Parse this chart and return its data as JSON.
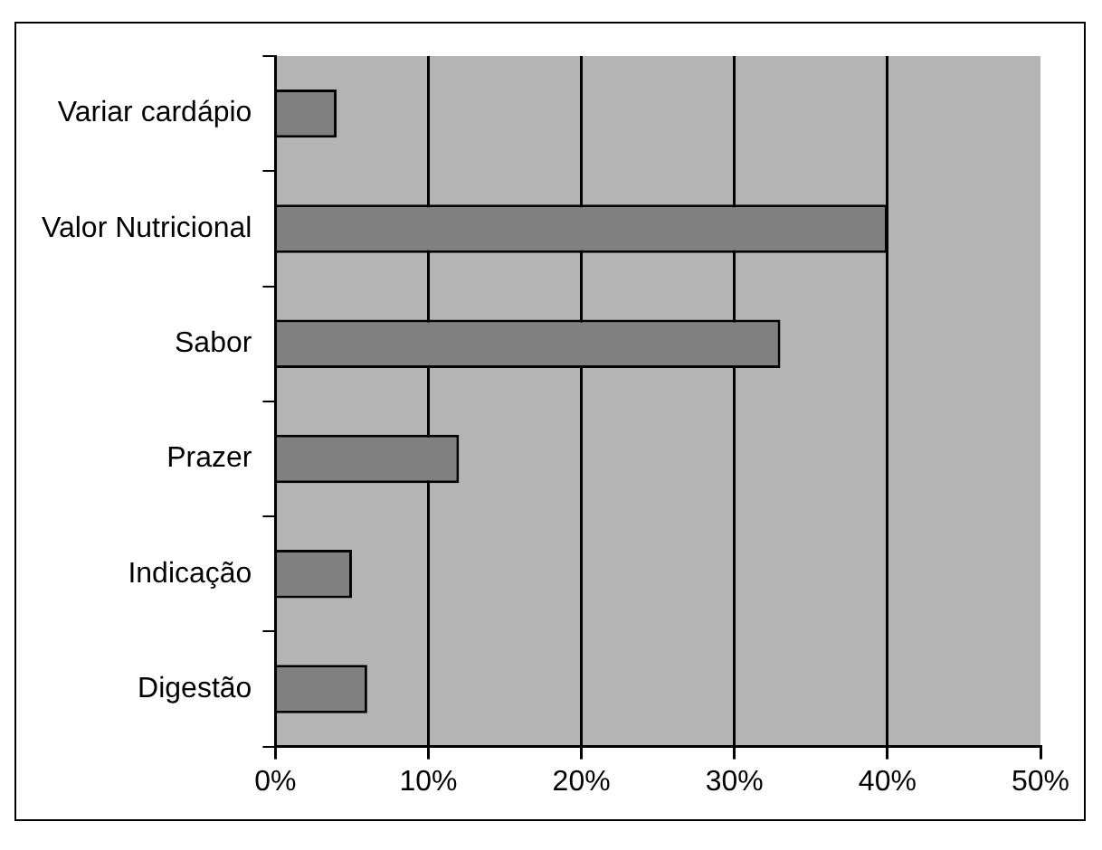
{
  "chart_data": {
    "type": "bar",
    "orientation": "horizontal",
    "categories": [
      "Variar cardápio",
      "Valor Nutricional",
      "Sabor",
      "Prazer",
      "Indicação",
      "Digestão"
    ],
    "values": [
      4,
      40,
      33,
      12,
      5,
      6
    ],
    "color": "#808080",
    "xlim": [
      0,
      50
    ],
    "xticks": [
      {
        "value": 0,
        "label": "0%"
      },
      {
        "value": 10,
        "label": "10%"
      },
      {
        "value": 20,
        "label": "20%"
      },
      {
        "value": 30,
        "label": "30%"
      },
      {
        "value": 40,
        "label": "40%"
      },
      {
        "value": 50,
        "label": "50%"
      }
    ],
    "grid": "x",
    "legend": false
  }
}
